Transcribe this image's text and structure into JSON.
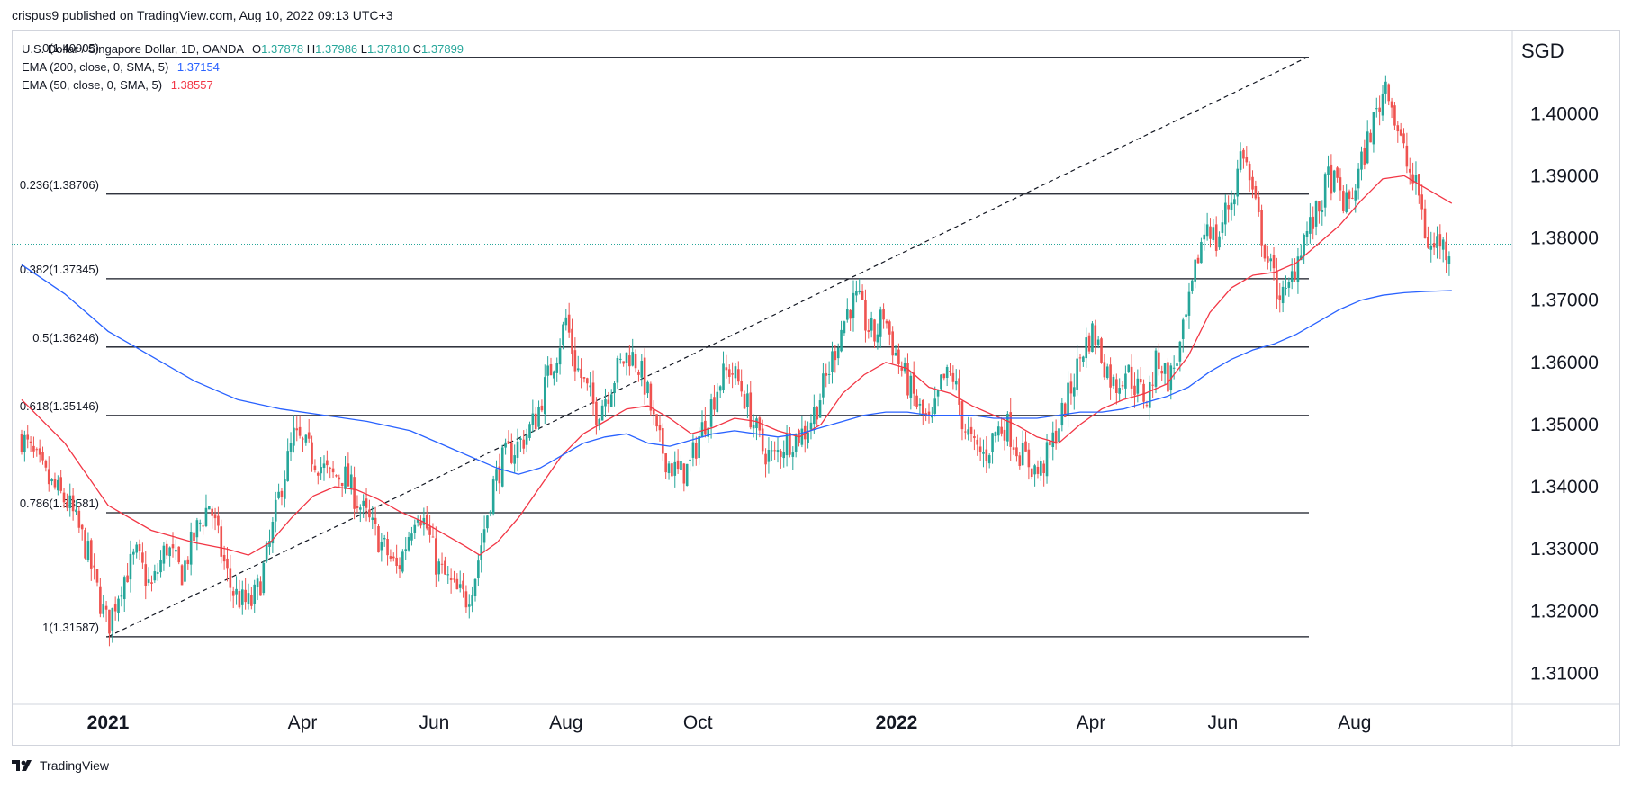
{
  "published": "crispus9 published on TradingView.com, Aug 10, 2022 09:13 UTC+3",
  "brand": "TradingView",
  "currency": "SGD",
  "legend": {
    "symbol": "U.S. Dollar / Singapore Dollar, 1D, OANDA",
    "o_label": "O",
    "o": "1.37878",
    "h_label": "H",
    "h": "1.37986",
    "l_label": "L",
    "l": "1.37810",
    "c_label": "C",
    "c": "1.37899",
    "ema200_label": "EMA (200, close, 0, SMA, 5)",
    "ema200": "1.37154",
    "ema50_label": "EMA (50, close, 0, SMA, 5)",
    "ema50": "1.38557"
  },
  "colors": {
    "up": "#26a69a",
    "down": "#ef5350",
    "ema200": "#2962ff",
    "ema50": "#f23645",
    "fib": "#131722",
    "grid": "#f0f3fa"
  },
  "chart_data": {
    "type": "candlestick",
    "ylim": [
      1.305,
      1.4135
    ],
    "y_ticks": [
      "1.40000",
      "1.39000",
      "1.38000",
      "1.37000",
      "1.36000",
      "1.35000",
      "1.34000",
      "1.33000",
      "1.32000",
      "1.31000"
    ],
    "x_ticks": [
      {
        "label": "2021",
        "bold": true,
        "day": 0
      },
      {
        "label": "Apr",
        "bold": false,
        "day": 90
      },
      {
        "label": "Jun",
        "bold": false,
        "day": 151
      },
      {
        "label": "Aug",
        "bold": false,
        "day": 212
      },
      {
        "label": "Oct",
        "bold": false,
        "day": 273
      },
      {
        "label": "2022",
        "bold": true,
        "day": 365
      },
      {
        "label": "Apr",
        "bold": false,
        "day": 455
      },
      {
        "label": "Jun",
        "bold": false,
        "day": 516
      },
      {
        "label": "Aug",
        "bold": false,
        "day": 577
      }
    ],
    "last_price": 1.37899,
    "fibonacci": [
      {
        "label": "0(1.40905)",
        "level": 1.40905
      },
      {
        "label": "0.236(1.38706)",
        "level": 1.38706
      },
      {
        "label": "0.382(1.37345)",
        "level": 1.37345
      },
      {
        "label": "0.5(1.36246)",
        "level": 1.36246
      },
      {
        "label": "0.618(1.35146)",
        "level": 1.35146
      },
      {
        "label": "0.786(1.33581)",
        "level": 1.33581
      },
      {
        "label": "1(1.31587)",
        "level": 1.31587
      }
    ],
    "fib_start_day": 0,
    "fib_end_day": 555,
    "trend_line": [
      [
        0,
        1.31587
      ],
      [
        555,
        1.40905
      ]
    ],
    "close_path": [
      [
        -40,
        1.348
      ],
      [
        -28,
        1.341
      ],
      [
        -18,
        1.337
      ],
      [
        -10,
        1.33
      ],
      [
        -4,
        1.322
      ],
      [
        0,
        1.3175
      ],
      [
        6,
        1.3245
      ],
      [
        13,
        1.329
      ],
      [
        20,
        1.3235
      ],
      [
        27,
        1.3305
      ],
      [
        34,
        1.326
      ],
      [
        41,
        1.333
      ],
      [
        47,
        1.3375
      ],
      [
        52,
        1.33
      ],
      [
        57,
        1.3235
      ],
      [
        62,
        1.3215
      ],
      [
        66,
        1.321
      ],
      [
        70,
        1.324
      ],
      [
        75,
        1.331
      ],
      [
        80,
        1.34
      ],
      [
        86,
        1.348
      ],
      [
        92,
        1.346
      ],
      [
        97,
        1.344
      ],
      [
        103,
        1.3415
      ],
      [
        109,
        1.342
      ],
      [
        115,
        1.338
      ],
      [
        122,
        1.3335
      ],
      [
        128,
        1.33
      ],
      [
        134,
        1.3265
      ],
      [
        138,
        1.331
      ],
      [
        143,
        1.337
      ],
      [
        148,
        1.333
      ],
      [
        152,
        1.3275
      ],
      [
        156,
        1.3255
      ],
      [
        161,
        1.323
      ],
      [
        166,
        1.322
      ],
      [
        170,
        1.326
      ],
      [
        174,
        1.333
      ],
      [
        178,
        1.34
      ],
      [
        183,
        1.3445
      ],
      [
        188,
        1.346
      ],
      [
        193,
        1.348
      ],
      [
        198,
        1.351
      ],
      [
        203,
        1.357
      ],
      [
        208,
        1.362
      ],
      [
        212,
        1.367
      ],
      [
        216,
        1.36
      ],
      [
        221,
        1.356
      ],
      [
        226,
        1.352
      ],
      [
        231,
        1.355
      ],
      [
        236,
        1.359
      ],
      [
        241,
        1.3615
      ],
      [
        245,
        1.36
      ],
      [
        249,
        1.356
      ],
      [
        254,
        1.348
      ],
      [
        259,
        1.344
      ],
      [
        264,
        1.342
      ],
      [
        269,
        1.343
      ],
      [
        273,
        1.3475
      ],
      [
        278,
        1.352
      ],
      [
        283,
        1.357
      ],
      [
        288,
        1.359
      ],
      [
        293,
        1.356
      ],
      [
        298,
        1.351
      ],
      [
        303,
        1.346
      ],
      [
        308,
        1.3445
      ],
      [
        313,
        1.347
      ],
      [
        318,
        1.348
      ],
      [
        323,
        1.349
      ],
      [
        328,
        1.353
      ],
      [
        333,
        1.358
      ],
      [
        338,
        1.364
      ],
      [
        343,
        1.369
      ],
      [
        347,
        1.37
      ],
      [
        351,
        1.366
      ],
      [
        355,
        1.364
      ],
      [
        359,
        1.368
      ],
      [
        363,
        1.363
      ],
      [
        367,
        1.359
      ],
      [
        371,
        1.356
      ],
      [
        376,
        1.352
      ],
      [
        381,
        1.3495
      ],
      [
        386,
        1.357
      ],
      [
        391,
        1.358
      ],
      [
        396,
        1.35
      ],
      [
        401,
        1.346
      ],
      [
        406,
        1.345
      ],
      [
        411,
        1.349
      ],
      [
        416,
        1.35
      ],
      [
        421,
        1.346
      ],
      [
        426,
        1.344
      ],
      [
        431,
        1.342
      ],
      [
        436,
        1.346
      ],
      [
        441,
        1.351
      ],
      [
        446,
        1.356
      ],
      [
        451,
        1.362
      ],
      [
        456,
        1.365
      ],
      [
        461,
        1.36
      ],
      [
        466,
        1.356
      ],
      [
        471,
        1.359
      ],
      [
        476,
        1.356
      ],
      [
        481,
        1.354
      ],
      [
        486,
        1.361
      ],
      [
        491,
        1.357
      ],
      [
        496,
        1.362
      ],
      [
        501,
        1.37
      ],
      [
        505,
        1.378
      ],
      [
        509,
        1.383
      ],
      [
        513,
        1.379
      ],
      [
        517,
        1.384
      ],
      [
        521,
        1.387
      ],
      [
        525,
        1.395
      ],
      [
        529,
        1.388
      ],
      [
        533,
        1.382
      ],
      [
        537,
        1.376
      ],
      [
        541,
        1.372
      ],
      [
        545,
        1.37
      ],
      [
        549,
        1.375
      ],
      [
        553,
        1.38
      ],
      [
        557,
        1.382
      ],
      [
        561,
        1.385
      ],
      [
        565,
        1.39
      ],
      [
        569,
        1.388
      ],
      [
        573,
        1.385
      ],
      [
        577,
        1.388
      ],
      [
        581,
        1.393
      ],
      [
        585,
        1.398
      ],
      [
        589,
        1.402
      ],
      [
        592,
        1.406
      ],
      [
        595,
        1.4
      ],
      [
        598,
        1.396
      ],
      [
        601,
        1.392
      ],
      [
        604,
        1.389
      ],
      [
        607,
        1.387
      ],
      [
        610,
        1.38
      ],
      [
        613,
        1.378
      ],
      [
        616,
        1.38
      ],
      [
        619,
        1.378
      ],
      [
        622,
        1.379
      ]
    ],
    "ema50_path": [
      [
        -40,
        1.354
      ],
      [
        -20,
        1.347
      ],
      [
        0,
        1.337
      ],
      [
        20,
        1.333
      ],
      [
        40,
        1.331
      ],
      [
        55,
        1.33
      ],
      [
        65,
        1.329
      ],
      [
        75,
        1.331
      ],
      [
        85,
        1.335
      ],
      [
        95,
        1.3385
      ],
      [
        105,
        1.34
      ],
      [
        115,
        1.3395
      ],
      [
        125,
        1.338
      ],
      [
        135,
        1.336
      ],
      [
        145,
        1.3345
      ],
      [
        155,
        1.3325
      ],
      [
        165,
        1.3305
      ],
      [
        172,
        1.329
      ],
      [
        180,
        1.331
      ],
      [
        190,
        1.335
      ],
      [
        200,
        1.34
      ],
      [
        210,
        1.345
      ],
      [
        220,
        1.3485
      ],
      [
        230,
        1.3505
      ],
      [
        240,
        1.3525
      ],
      [
        250,
        1.353
      ],
      [
        260,
        1.351
      ],
      [
        270,
        1.3485
      ],
      [
        280,
        1.3495
      ],
      [
        290,
        1.351
      ],
      [
        300,
        1.3505
      ],
      [
        310,
        1.349
      ],
      [
        320,
        1.348
      ],
      [
        330,
        1.35
      ],
      [
        340,
        1.355
      ],
      [
        350,
        1.358
      ],
      [
        360,
        1.36
      ],
      [
        370,
        1.359
      ],
      [
        380,
        1.356
      ],
      [
        390,
        1.355
      ],
      [
        400,
        1.353
      ],
      [
        410,
        1.3515
      ],
      [
        420,
        1.35
      ],
      [
        430,
        1.348
      ],
      [
        440,
        1.347
      ],
      [
        450,
        1.35
      ],
      [
        460,
        1.3525
      ],
      [
        470,
        1.354
      ],
      [
        480,
        1.355
      ],
      [
        490,
        1.3565
      ],
      [
        500,
        1.361
      ],
      [
        510,
        1.368
      ],
      [
        520,
        1.372
      ],
      [
        530,
        1.374
      ],
      [
        540,
        1.3745
      ],
      [
        550,
        1.376
      ],
      [
        560,
        1.379
      ],
      [
        570,
        1.382
      ],
      [
        580,
        1.386
      ],
      [
        590,
        1.3895
      ],
      [
        600,
        1.39
      ],
      [
        610,
        1.388
      ],
      [
        622,
        1.38557
      ]
    ],
    "ema200_path": [
      [
        -40,
        1.3757
      ],
      [
        -20,
        1.371
      ],
      [
        0,
        1.365
      ],
      [
        20,
        1.361
      ],
      [
        40,
        1.357
      ],
      [
        60,
        1.354
      ],
      [
        80,
        1.3525
      ],
      [
        100,
        1.3515
      ],
      [
        120,
        1.3505
      ],
      [
        140,
        1.349
      ],
      [
        160,
        1.346
      ],
      [
        180,
        1.343
      ],
      [
        190,
        1.342
      ],
      [
        200,
        1.343
      ],
      [
        210,
        1.345
      ],
      [
        220,
        1.347
      ],
      [
        230,
        1.348
      ],
      [
        240,
        1.3485
      ],
      [
        250,
        1.347
      ],
      [
        260,
        1.3465
      ],
      [
        270,
        1.3475
      ],
      [
        280,
        1.3485
      ],
      [
        290,
        1.349
      ],
      [
        300,
        1.3485
      ],
      [
        310,
        1.348
      ],
      [
        320,
        1.3485
      ],
      [
        330,
        1.3495
      ],
      [
        340,
        1.3505
      ],
      [
        350,
        1.3515
      ],
      [
        360,
        1.352
      ],
      [
        370,
        1.352
      ],
      [
        380,
        1.3515
      ],
      [
        390,
        1.3515
      ],
      [
        400,
        1.3515
      ],
      [
        410,
        1.351
      ],
      [
        420,
        1.351
      ],
      [
        430,
        1.351
      ],
      [
        440,
        1.3515
      ],
      [
        450,
        1.352
      ],
      [
        460,
        1.352
      ],
      [
        470,
        1.3525
      ],
      [
        480,
        1.3535
      ],
      [
        490,
        1.3545
      ],
      [
        500,
        1.356
      ],
      [
        510,
        1.3585
      ],
      [
        520,
        1.3605
      ],
      [
        530,
        1.362
      ],
      [
        540,
        1.363
      ],
      [
        550,
        1.3645
      ],
      [
        560,
        1.3665
      ],
      [
        570,
        1.3685
      ],
      [
        580,
        1.37
      ],
      [
        590,
        1.3708
      ],
      [
        600,
        1.3712
      ],
      [
        610,
        1.3714
      ],
      [
        622,
        1.37154
      ]
    ]
  }
}
